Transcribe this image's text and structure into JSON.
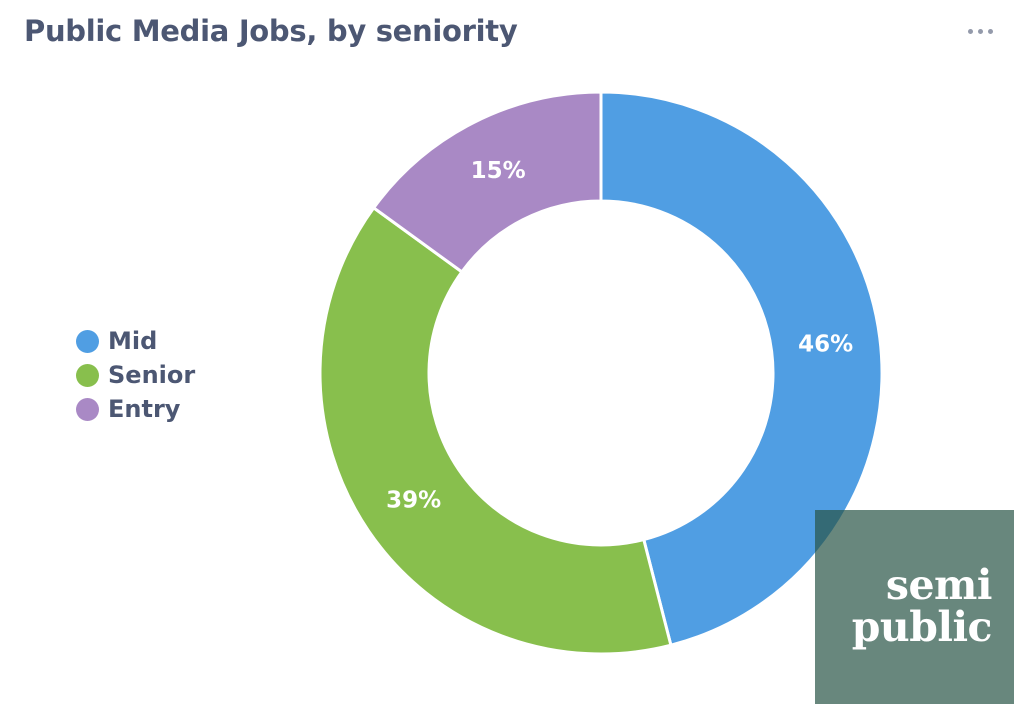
{
  "header": {
    "title": "Public Media Jobs, by seniority",
    "menu_icon": "more-horizontal-icon"
  },
  "chart_data": {
    "type": "pie",
    "donut": true,
    "title": "Public Media Jobs, by seniority",
    "legend_position": "left",
    "slices": [
      {
        "name": "Mid",
        "value": 46,
        "label": "46%",
        "color": "#509ee3"
      },
      {
        "name": "Senior",
        "value": 39,
        "label": "39%",
        "color": "#88bf4d"
      },
      {
        "name": "Entry",
        "value": 15,
        "label": "15%",
        "color": "#a989c5"
      }
    ]
  },
  "legend": {
    "items": [
      {
        "label": "Mid",
        "color": "#509ee3"
      },
      {
        "label": "Senior",
        "color": "#88bf4d"
      },
      {
        "label": "Entry",
        "color": "#a989c5"
      }
    ]
  },
  "watermark": {
    "line1": "semi",
    "line2": "public",
    "color": "#285446"
  }
}
